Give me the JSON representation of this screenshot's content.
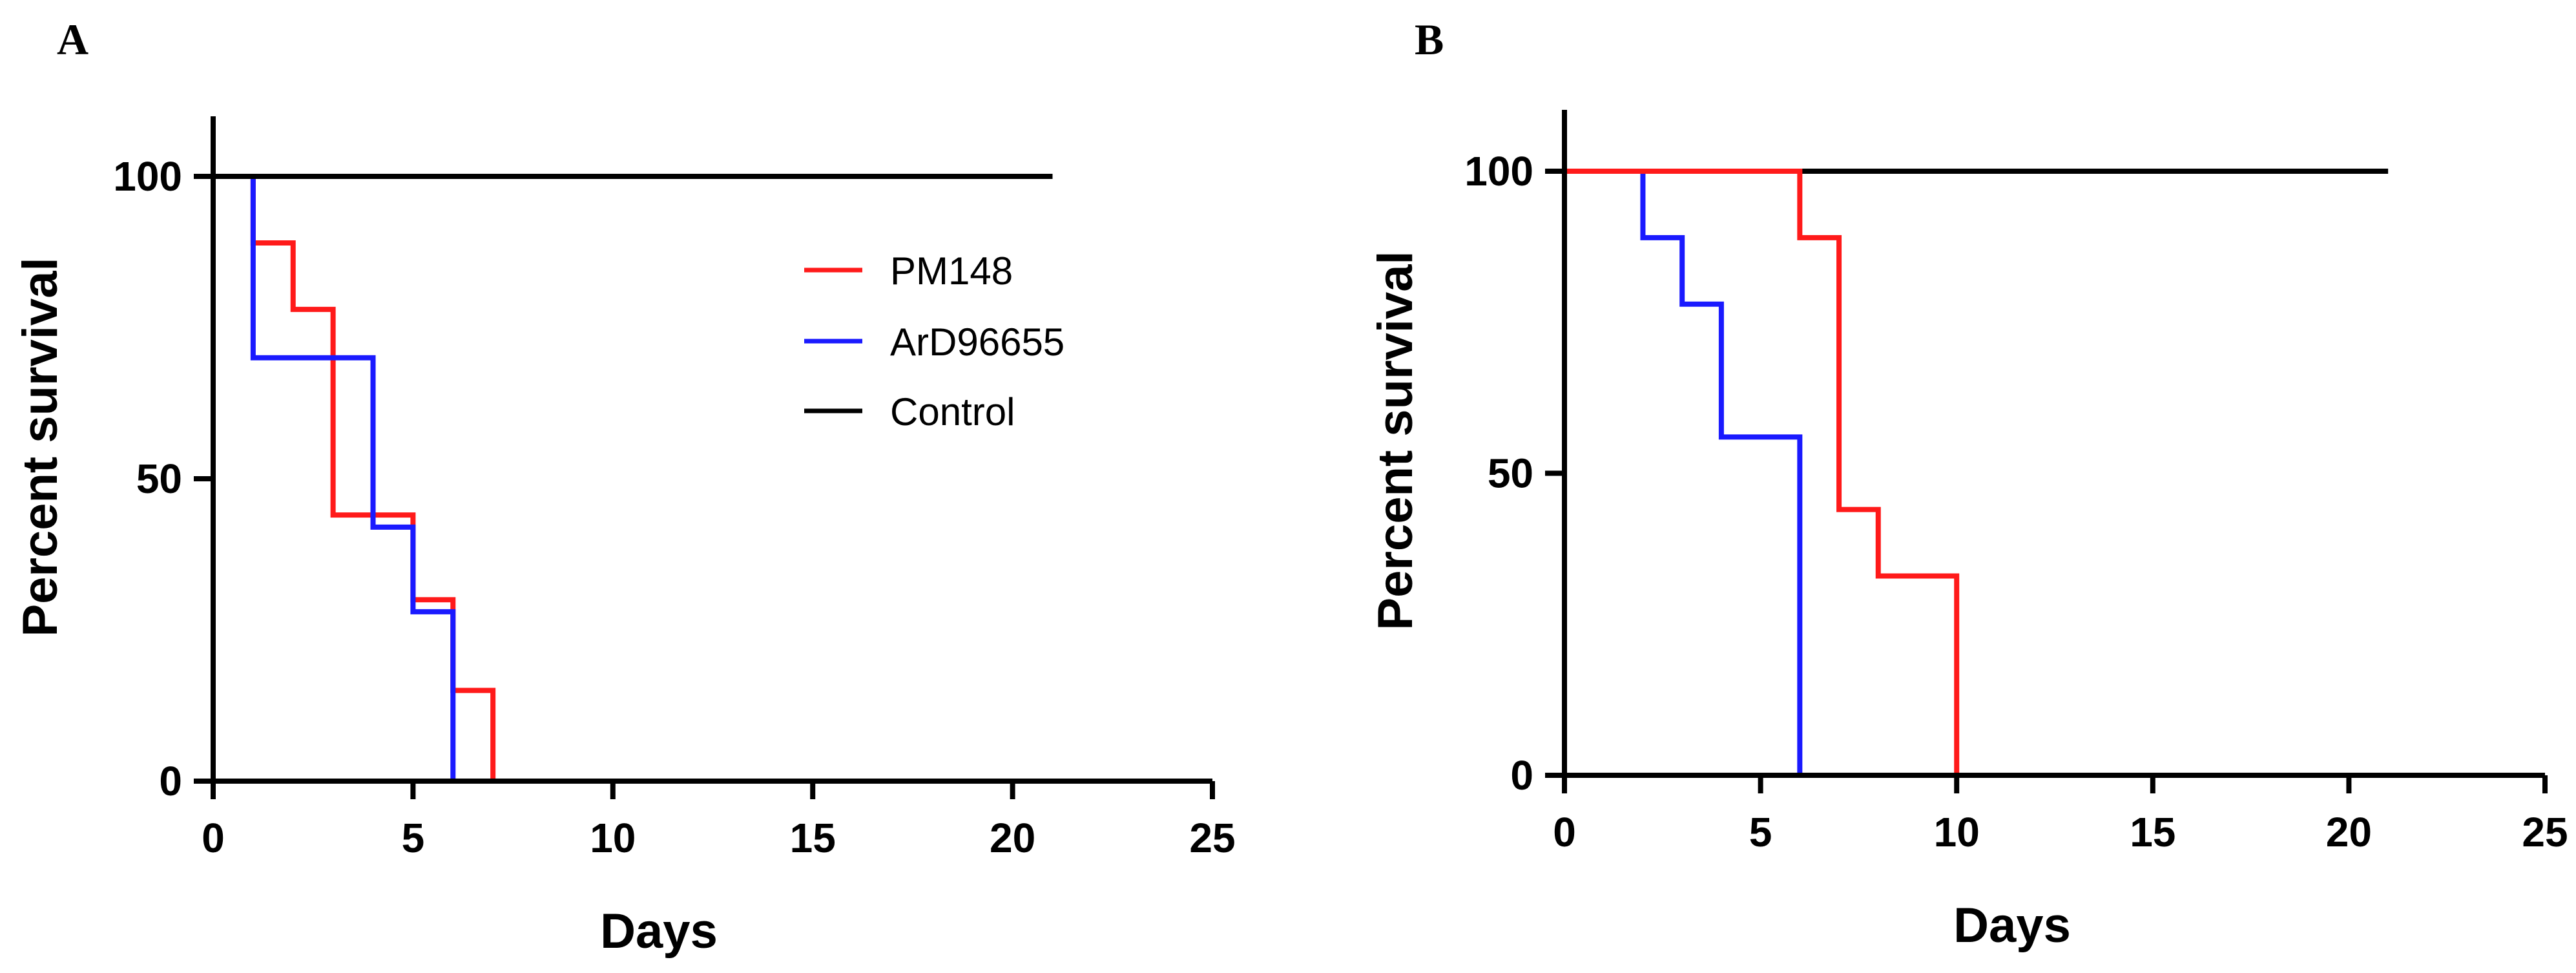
{
  "chart_data": [
    {
      "panel": "A",
      "type": "line",
      "step": true,
      "xlabel": "Days",
      "ylabel": "Percent survival",
      "xlim": [
        0,
        25
      ],
      "ylim": [
        0,
        110
      ],
      "xticks": [
        "0",
        "5",
        "10",
        "15",
        "20",
        "25"
      ],
      "yticks": [
        "0",
        "50",
        "100"
      ],
      "legend": true,
      "legend_position": "top-right",
      "series": [
        {
          "name": "PM148",
          "color": "#ff1a1a",
          "x": [
            0,
            1,
            2,
            3,
            5,
            6,
            7
          ],
          "y": [
            100,
            89,
            78,
            44,
            30,
            15,
            0
          ]
        },
        {
          "name": "ArD96655",
          "color": "#1a1aff",
          "x": [
            0,
            1,
            4,
            5,
            6
          ],
          "y": [
            100,
            70,
            42,
            28,
            0
          ]
        },
        {
          "name": "Control",
          "color": "#000000",
          "x": [
            0,
            21
          ],
          "y": [
            100,
            100
          ]
        }
      ]
    },
    {
      "panel": "B",
      "type": "line",
      "step": true,
      "xlabel": "Days",
      "ylabel": "Percent survival",
      "xlim": [
        0,
        25
      ],
      "ylim": [
        0,
        110
      ],
      "xticks": [
        "0",
        "5",
        "10",
        "15",
        "20",
        "25"
      ],
      "yticks": [
        "0",
        "50",
        "100"
      ],
      "legend": false,
      "series": [
        {
          "name": "Control",
          "color": "#000000",
          "x": [
            0,
            21
          ],
          "y": [
            100,
            100
          ]
        },
        {
          "name": "ArD96655",
          "color": "#1a1aff",
          "x": [
            0,
            2,
            3,
            4,
            6
          ],
          "y": [
            100,
            89,
            78,
            56,
            0
          ]
        },
        {
          "name": "PM148",
          "color": "#ff1a1a",
          "x": [
            0,
            6,
            7,
            8,
            10
          ],
          "y": [
            100,
            89,
            44,
            33,
            0
          ]
        }
      ]
    }
  ]
}
